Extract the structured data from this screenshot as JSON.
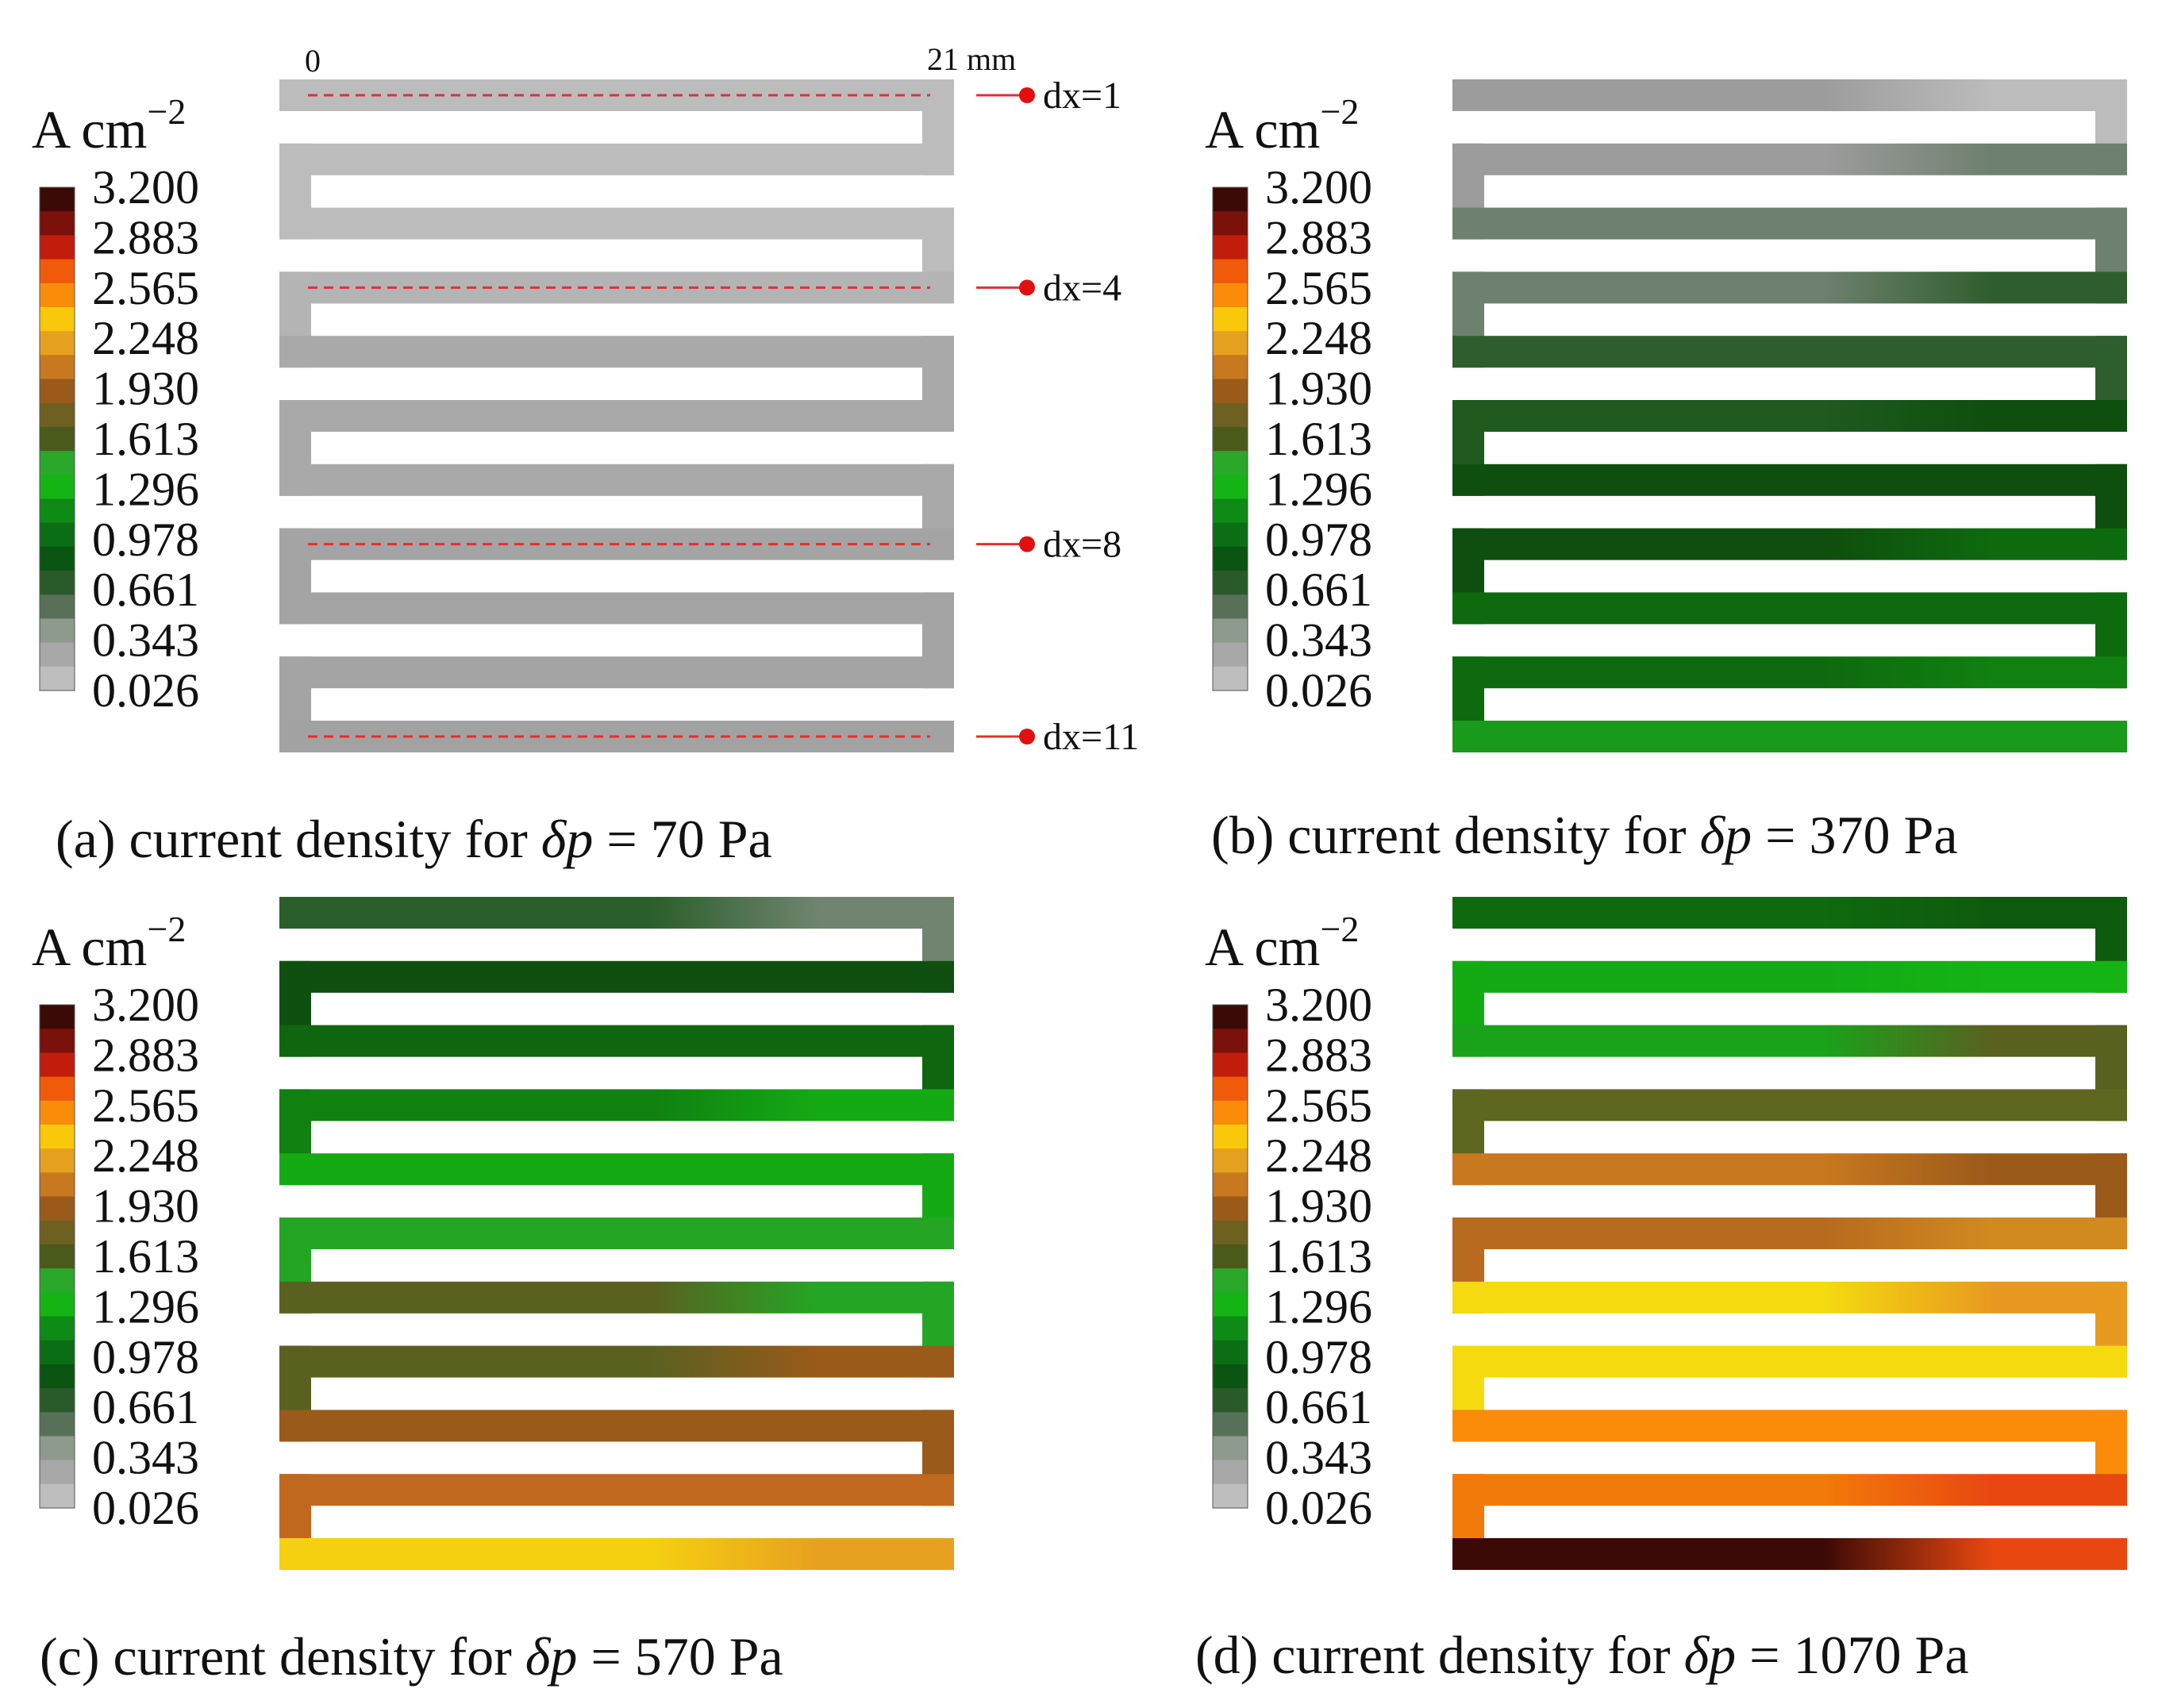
{
  "colorbar": {
    "unit": "A cm",
    "unit_exponent": "−2",
    "ticks": [
      "3.200",
      "2.883",
      "2.565",
      "2.248",
      "1.930",
      "1.613",
      "1.296",
      "0.978",
      "0.661",
      "0.343",
      "0.026"
    ],
    "band_colors": [
      "#3c0a06",
      "#7a110a",
      "#c21d0c",
      "#f05a0a",
      "#fa8c0a",
      "#fac80a",
      "#e6a020",
      "#c8781e",
      "#9a5a1a",
      "#6e6020",
      "#4a5a1a",
      "#2aa82a",
      "#14b414",
      "#0e8a16",
      "#0b6e14",
      "#0a5512",
      "#2a5a2a",
      "#587058",
      "#8e9a8e",
      "#a8a8a8",
      "#bebebe"
    ]
  },
  "axis": {
    "start_label": "0",
    "end_label": "21 mm"
  },
  "probe_labels": [
    "dx=1",
    "dx=4",
    "dx=8",
    "dx=11"
  ],
  "probe_channels": [
    0,
    3,
    7,
    10
  ],
  "panels": [
    {
      "id": "a",
      "caption": {
        "prefix": "(a) current density for ",
        "delta": "δ",
        "var": "p",
        "eq": " = ",
        "value": "70 Pa"
      },
      "channel_colors": [
        [
          "#bcbcbc",
          "#bcbcbc"
        ],
        [
          "#bcbcbc",
          "#bcbcbc"
        ],
        [
          "#bcbcbc",
          "#bcbcbc"
        ],
        [
          "#b4b4b4",
          "#b4b4b4"
        ],
        [
          "#a9a9a9",
          "#a9a9a9"
        ],
        [
          "#a9a9a9",
          "#a9a9a9"
        ],
        [
          "#a9a9a9",
          "#a9a9a9"
        ],
        [
          "#a4a4a4",
          "#a4a4a4"
        ],
        [
          "#a4a4a4",
          "#a4a4a4"
        ],
        [
          "#a4a4a4",
          "#a4a4a4"
        ],
        [
          "#a2a2a2",
          "#a2a2a2"
        ]
      ]
    },
    {
      "id": "b",
      "caption": {
        "prefix": "(b) current density for ",
        "delta": "δ",
        "var": "p",
        "eq": " = ",
        "value": "370 Pa"
      },
      "channel_colors": [
        [
          "#9c9c9c",
          "#bcbcbc"
        ],
        [
          "#9c9c9c",
          "#6e806e"
        ],
        [
          "#6e806e",
          "#6e806e"
        ],
        [
          "#6e806e",
          "#2e5e2e"
        ],
        [
          "#2e5e2e",
          "#2e5e2e"
        ],
        [
          "#1f5a1f",
          "#0e4e0e"
        ],
        [
          "#0e4e0e",
          "#0e4e0e"
        ],
        [
          "#0e4e0e",
          "#0e6a0e"
        ],
        [
          "#0e6a0e",
          "#0e6a0e"
        ],
        [
          "#0e6a0e",
          "#108010"
        ],
        [
          "#1a9a1a",
          "#1a9a1a"
        ]
      ]
    },
    {
      "id": "c",
      "caption": {
        "prefix": "(c) current density for ",
        "delta": "δ",
        "var": "p",
        "eq": " = ",
        "value": "570 Pa"
      },
      "channel_colors": [
        [
          "#2a5e2a",
          "#708470"
        ],
        [
          "#0f4f0f",
          "#0f4f0f"
        ],
        [
          "#0f660f",
          "#0f660f"
        ],
        [
          "#108010",
          "#14aa14"
        ],
        [
          "#14aa14",
          "#14aa14"
        ],
        [
          "#24a624",
          "#24a624"
        ],
        [
          "#5a6020",
          "#24a624"
        ],
        [
          "#5a6020",
          "#9a5a1a"
        ],
        [
          "#9a5a1a",
          "#9a5a1a"
        ],
        [
          "#c0681e",
          "#c0681e"
        ],
        [
          "#f5d010",
          "#e8a020"
        ]
      ]
    },
    {
      "id": "d",
      "caption": {
        "prefix": "(d) current density for ",
        "delta": "δ",
        "var": "p",
        "eq": " = ",
        "value": "1070 Pa"
      },
      "channel_colors": [
        [
          "#0e6a0e",
          "#0e5a0e"
        ],
        [
          "#14aa14",
          "#14b414"
        ],
        [
          "#1aa21a",
          "#5a6020"
        ],
        [
          "#5e6620",
          "#5e6620"
        ],
        [
          "#c8781e",
          "#9a5a1a"
        ],
        [
          "#b86a1e",
          "#d08a20"
        ],
        [
          "#f5da10",
          "#e89a20"
        ],
        [
          "#f5da10",
          "#f5da10"
        ],
        [
          "#fa8c0a",
          "#fa8c0a"
        ],
        [
          "#f27a0a",
          "#e84810"
        ],
        [
          "#3c0a06",
          "#e84810"
        ]
      ]
    }
  ]
}
